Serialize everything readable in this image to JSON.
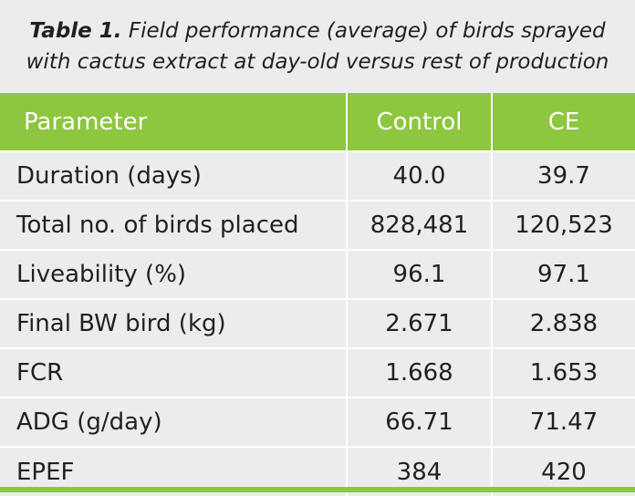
{
  "caption": {
    "label": "Table 1.",
    "line1": "Field performance (average) of birds sprayed",
    "line2": "with cactus extract at day-old versus rest of production"
  },
  "colors": {
    "header_bg": "#8dc63f",
    "body_bg": "#ececec",
    "text": "#231f20"
  },
  "table": {
    "headers": [
      "Parameter",
      "Control",
      "CE"
    ],
    "rows": [
      [
        "Duration (days)",
        "40.0",
        "39.7"
      ],
      [
        "Total no. of birds placed",
        "828,481",
        "120,523"
      ],
      [
        "Liveability (%)",
        "96.1",
        "97.1"
      ],
      [
        "Final BW bird (kg)",
        "2.671",
        "2.838"
      ],
      [
        "FCR",
        "1.668",
        "1.653"
      ],
      [
        "ADG (g/day)",
        "66.71",
        "71.47"
      ],
      [
        "EPEF",
        "384",
        "420"
      ]
    ]
  }
}
